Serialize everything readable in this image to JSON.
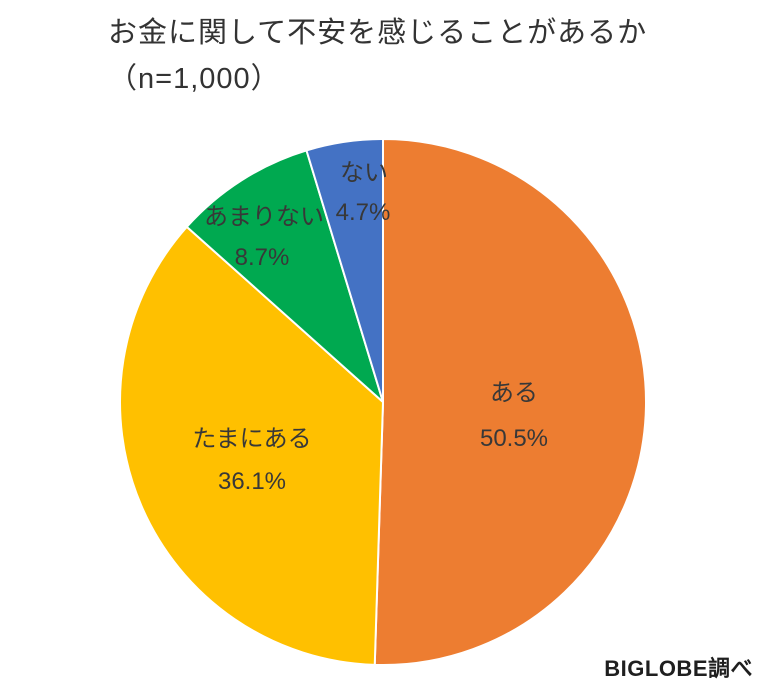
{
  "title": {
    "line1": "お金に関して不安を感じることがあるか",
    "line2": "（n=1,000）"
  },
  "source_credit": "BIGLOBE調べ",
  "chart_data": {
    "type": "pie",
    "title": "お金に関して不安を感じることがあるか（n=1,000）",
    "sample_size_label": "n=1,000",
    "categories": [
      "ある",
      "たまにある",
      "あまりない",
      "ない"
    ],
    "values": [
      50.5,
      36.1,
      8.7,
      4.7
    ],
    "value_labels": [
      "50.5%",
      "36.1%",
      "8.7%",
      "4.7%"
    ],
    "colors": [
      "#ED7D31",
      "#FFC000",
      "#00A950",
      "#4472C4"
    ],
    "start_angle_deg": 0,
    "direction": "clockwise",
    "separator_color": "#FFFFFF",
    "legend": "none",
    "label_style": "inside"
  }
}
